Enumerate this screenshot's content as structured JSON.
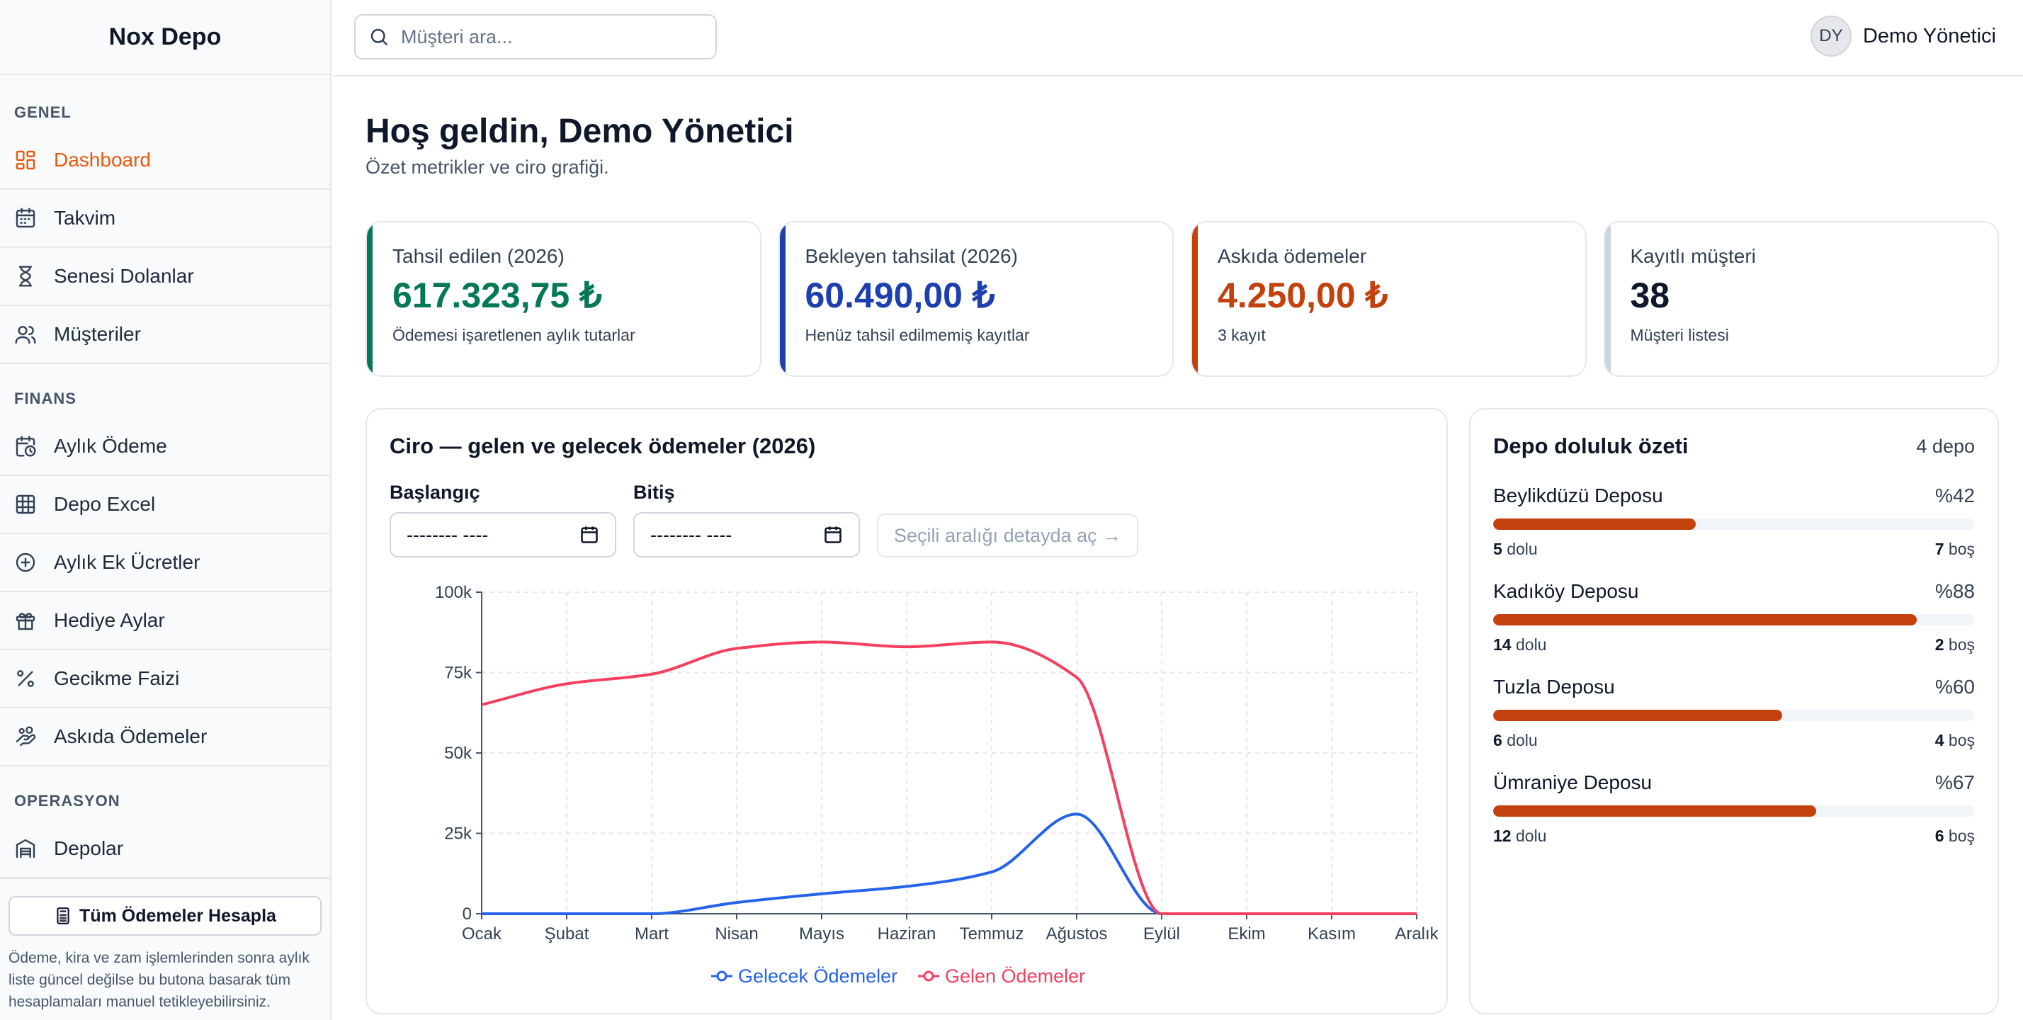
{
  "brand": "Nox Depo",
  "sidebar": {
    "sections": [
      {
        "title": "GENEL",
        "items": [
          {
            "label": "Dashboard",
            "icon": "dashboard-icon",
            "active": true
          },
          {
            "label": "Takvim",
            "icon": "calendar-icon"
          },
          {
            "label": "Senesi Dolanlar",
            "icon": "hourglass-icon"
          },
          {
            "label": "Müşteriler",
            "icon": "users-icon"
          }
        ]
      },
      {
        "title": "FINANS",
        "items": [
          {
            "label": "Aylık Ödeme",
            "icon": "calendar-clock-icon"
          },
          {
            "label": "Depo Excel",
            "icon": "table-icon"
          },
          {
            "label": "Aylık Ek Ücretler",
            "icon": "plus-circle-icon"
          },
          {
            "label": "Hediye Aylar",
            "icon": "gift-icon"
          },
          {
            "label": "Gecikme Faizi",
            "icon": "percent-icon"
          },
          {
            "label": "Askıda Ödemeler",
            "icon": "hand-coins-icon"
          }
        ]
      },
      {
        "title": "OPERASYON",
        "items": [
          {
            "label": "Depolar",
            "icon": "warehouse-icon"
          }
        ]
      }
    ],
    "calc_button": "Tüm Ödemeler Hesapla",
    "calc_note": "Ödeme, kira ve zam işlemlerinden sonra aylık liste güncel değilse bu butona basarak tüm hesaplamaları manuel tetikleyebilirsiniz."
  },
  "topbar": {
    "search_placeholder": "Müşteri ara...",
    "avatar_initials": "DY",
    "user_name": "Demo Yönetici"
  },
  "header": {
    "title": "Hoş geldin, Demo Yönetici",
    "subtitle": "Özet metrikler ve ciro grafiği."
  },
  "cards": [
    {
      "label": "Tahsil edilen (2026)",
      "value": "617.323,75 ₺",
      "hint": "Ödemesi işaretlenen aylık tutarlar",
      "accent": "#047857",
      "value_color": "#047857"
    },
    {
      "label": "Bekleyen tahsilat (2026)",
      "value": "60.490,00 ₺",
      "hint": "Henüz tahsil edilmemiş kayıtlar",
      "accent": "#1e40af",
      "value_color": "#1e40af"
    },
    {
      "label": "Askıda ödemeler",
      "value": "4.250,00 ₺",
      "hint": "3 kayıt",
      "accent": "#c2410c",
      "value_color": "#c2410c"
    },
    {
      "label": "Kayıtlı müşteri",
      "value": "38",
      "hint": "Müşteri listesi",
      "accent": "#cbd5e1",
      "value_color": "#0f172a"
    }
  ],
  "revenue": {
    "title": "Ciro — gelen ve gelecek ödemeler (2026)",
    "start_label": "Başlangıç",
    "end_label": "Bitiş",
    "date_placeholder": "-------- ----",
    "open_button": "Seçili aralığı detayda aç →"
  },
  "chart_data": {
    "type": "line",
    "categories": [
      "Ocak",
      "Şubat",
      "Mart",
      "Nisan",
      "Mayıs",
      "Haziran",
      "Temmuz",
      "Ağustos",
      "Eylül",
      "Ekim",
      "Kasım",
      "Aralık"
    ],
    "yticks": [
      "0",
      "25k",
      "50k",
      "75k",
      "100k"
    ],
    "ylim": [
      0,
      100000
    ],
    "grid": true,
    "legend_position": "bottom",
    "series": [
      {
        "name": "Gelecek Ödemeler",
        "color": "#2563eb",
        "values": [
          0,
          0,
          0,
          3500,
          6200,
          8500,
          13000,
          31000,
          0,
          0,
          0,
          0
        ]
      },
      {
        "name": "Gelen Ödemeler",
        "color": "#f43f5e",
        "values": [
          65000,
          71500,
          74500,
          82500,
          84500,
          83000,
          84500,
          73500,
          0,
          0,
          0,
          0
        ]
      }
    ]
  },
  "occupancy": {
    "title": "Depo doluluk özeti",
    "count": "4 depo",
    "full_word": "dolu",
    "empty_word": "boş",
    "depots": [
      {
        "name": "Beylikdüzü Deposu",
        "pct_label": "%42",
        "pct": 42,
        "full": "5",
        "empty": "7"
      },
      {
        "name": "Kadıköy Deposu",
        "pct_label": "%88",
        "pct": 88,
        "full": "14",
        "empty": "2"
      },
      {
        "name": "Tuzla Deposu",
        "pct_label": "%60",
        "pct": 60,
        "full": "6",
        "empty": "4"
      },
      {
        "name": "Ümraniye Deposu",
        "pct_label": "%67",
        "pct": 67,
        "full": "12",
        "empty": "6"
      }
    ]
  }
}
